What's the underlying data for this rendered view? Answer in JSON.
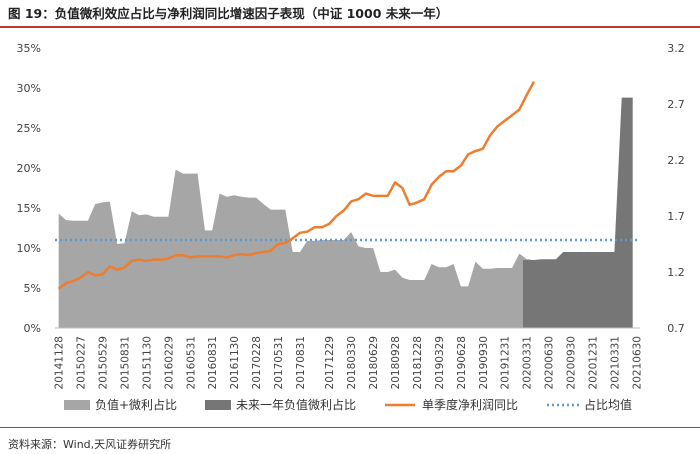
{
  "header": {
    "title": "图 19：负值微利效应占比与净利润同比增速因子表现（中证 1000 未来一年）"
  },
  "footer": {
    "source": "资料来源：Wind,天风证券研究所"
  },
  "chart_data": {
    "type": "area",
    "title": "图 19：负值微利效应占比与净利润同比增速因子表现（中证 1000 未来一年）",
    "x_tick_labels": [
      "20141128",
      "20150227",
      "20150529",
      "20150831",
      "20151130",
      "20160229",
      "20160531",
      "20160831",
      "20161130",
      "20170228",
      "20170531",
      "20170831",
      "20171229",
      "20180330",
      "20180629",
      "20180928",
      "20181228",
      "20190329",
      "20190628",
      "20190930",
      "20191231",
      "20200331",
      "20200630",
      "20200930",
      "20201231",
      "20210331",
      "20210630"
    ],
    "x_dates": [
      "20141128",
      "20141231",
      "20150130",
      "20150227",
      "20150331",
      "20150430",
      "20150529",
      "20150630",
      "20150731",
      "20150831",
      "20150930",
      "20151030",
      "20151130",
      "20151231",
      "20160129",
      "20160229",
      "20160331",
      "20160429",
      "20160531",
      "20160630",
      "20160729",
      "20160831",
      "20160930",
      "20161031",
      "20161130",
      "20161230",
      "20170126",
      "20170228",
      "20170331",
      "20170428",
      "20170531",
      "20170630",
      "20170731",
      "20170831",
      "20170929",
      "20171031",
      "20171130",
      "20171229",
      "20180131",
      "20180228",
      "20180330",
      "20180427",
      "20180531",
      "20180629",
      "20180731",
      "20180831",
      "20180928",
      "20181031",
      "20181130",
      "20181228",
      "20190131",
      "20190228",
      "20190329",
      "20190430",
      "20190531",
      "20190628",
      "20190731",
      "20190830",
      "20190930",
      "20191031",
      "20191129",
      "20191231",
      "20200123",
      "20200228",
      "20200331",
      "20200430",
      "20200529",
      "20200630",
      "20200731",
      "20200831",
      "20200930",
      "20201030",
      "20201130",
      "20201231",
      "20210129",
      "20210226",
      "20210331",
      "20210430",
      "20210531",
      "20210630"
    ],
    "y_left": {
      "ticks": [
        "0%",
        "5%",
        "10%",
        "15%",
        "20%",
        "25%",
        "30%",
        "35%"
      ],
      "ylim": [
        0,
        35
      ]
    },
    "y_right": {
      "ticks": [
        "0.7",
        "1.2",
        "1.7",
        "2.2",
        "2.7",
        "3.2"
      ],
      "ylim": [
        0.7,
        3.2
      ]
    },
    "series": [
      {
        "name": "负值+微利占比",
        "kind": "area",
        "axis": "left",
        "color": "#a6a6a6",
        "values": [
          14.3,
          13.5,
          13.4,
          13.4,
          13.4,
          15.5,
          15.7,
          15.8,
          10.5,
          10.6,
          14.6,
          14.1,
          14.2,
          13.9,
          13.9,
          13.9,
          19.8,
          19.3,
          19.3,
          19.3,
          12.2,
          12.2,
          16.8,
          16.4,
          16.6,
          16.4,
          16.3,
          16.3,
          15.5,
          14.8,
          14.8,
          14.8,
          9.5,
          9.5,
          10.9,
          10.9,
          11.0,
          11.0,
          11.0,
          11.0,
          12.0,
          10.2,
          10.0,
          10.0,
          7.0,
          7.0,
          7.3,
          6.3,
          6.0,
          6.0,
          6.0,
          8.0,
          7.6,
          7.6,
          8.0,
          5.2,
          5.2,
          8.3,
          7.4,
          7.4,
          7.5,
          7.5,
          7.5,
          9.3,
          8.6
        ]
      },
      {
        "name": "未来一年负值微利占比",
        "kind": "area",
        "axis": "left",
        "color": "#767676",
        "values": [
          null,
          null,
          null,
          null,
          null,
          null,
          null,
          null,
          null,
          null,
          null,
          null,
          null,
          null,
          null,
          null,
          null,
          null,
          null,
          null,
          null,
          null,
          null,
          null,
          null,
          null,
          null,
          null,
          null,
          null,
          null,
          null,
          null,
          null,
          null,
          null,
          null,
          null,
          null,
          null,
          null,
          null,
          null,
          null,
          null,
          null,
          null,
          null,
          null,
          null,
          null,
          null,
          null,
          null,
          null,
          null,
          null,
          null,
          null,
          null,
          null,
          null,
          null,
          null,
          8.5,
          8.5,
          8.6,
          8.6,
          8.6,
          9.5,
          9.5,
          9.5,
          9.5,
          9.5,
          9.5,
          9.5,
          9.5,
          28.8,
          28.8
        ]
      },
      {
        "name": "单季度净利润同比",
        "kind": "line",
        "axis": "right",
        "color": "#ed7d31",
        "values": [
          1.05,
          1.1,
          1.12,
          1.15,
          1.2,
          1.17,
          1.18,
          1.25,
          1.22,
          1.24,
          1.3,
          1.31,
          1.3,
          1.31,
          1.31,
          1.32,
          1.35,
          1.35,
          1.33,
          1.34,
          1.34,
          1.34,
          1.34,
          1.33,
          1.35,
          1.36,
          1.35,
          1.37,
          1.38,
          1.39,
          1.45,
          1.46,
          1.5,
          1.55,
          1.56,
          1.6,
          1.6,
          1.63,
          1.7,
          1.75,
          1.83,
          1.85,
          1.9,
          1.88,
          1.88,
          1.88,
          2.0,
          1.95,
          1.8,
          1.82,
          1.85,
          1.98,
          2.05,
          2.1,
          2.1,
          2.15,
          2.25,
          2.28,
          2.3,
          2.42,
          2.5,
          2.55,
          2.6,
          2.65,
          2.78,
          2.9
        ]
      },
      {
        "name": "占比均值",
        "kind": "dotted",
        "axis": "left",
        "color": "#5b9bd5",
        "value": 11.0
      }
    ],
    "legend_position": "bottom",
    "grid": false
  }
}
